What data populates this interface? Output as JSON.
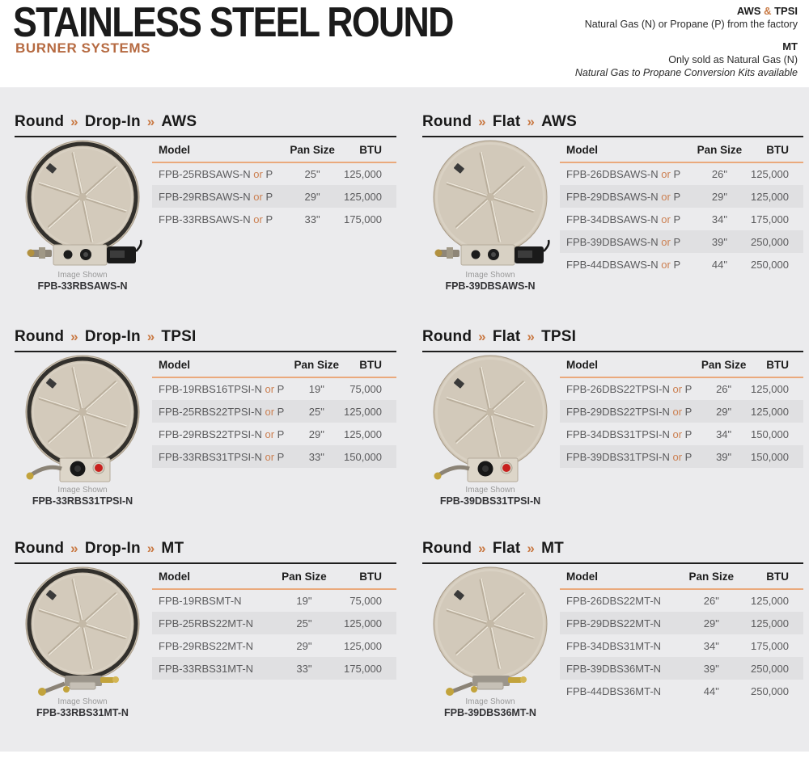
{
  "header": {
    "title": "STAINLESS STEEL ROUND",
    "subtitle": "BURNER SYSTEMS",
    "notes": [
      {
        "heading": "AWS & TPSI",
        "lines": [
          {
            "text": "Natural Gas (N) or Propane (P) from the factory",
            "italic": false
          }
        ]
      },
      {
        "heading": "MT",
        "lines": [
          {
            "text": "Only sold as Natural Gas (N)",
            "italic": false
          },
          {
            "text": "Natural Gas to Propane Conversion Kits available",
            "italic": true
          }
        ]
      }
    ]
  },
  "accent_colors": {
    "orange": "#c97a45",
    "orange_light": "#eaa97c",
    "row_shade": "#e0e0e2",
    "page_bg": "#ebebed"
  },
  "table_headers": [
    "Model",
    "Pan Size",
    "BTU"
  ],
  "or_label": "or",
  "image_caption_label": "Image Shown",
  "sections": [
    {
      "breadcrumb": [
        "Round",
        "Drop-In",
        "AWS"
      ],
      "image_style": "drop-in",
      "image_family": "aws",
      "image_model": "FPB-33RBSAWS-N",
      "rows": [
        {
          "model": "FPB-25RBSAWS-N",
          "alt": "P",
          "pan": "25\"",
          "btu": "125,000"
        },
        {
          "model": "FPB-29RBSAWS-N",
          "alt": "P",
          "pan": "29\"",
          "btu": "125,000"
        },
        {
          "model": "FPB-33RBSAWS-N",
          "alt": "P",
          "pan": "33\"",
          "btu": "175,000"
        }
      ]
    },
    {
      "breadcrumb": [
        "Round",
        "Flat",
        "AWS"
      ],
      "image_style": "flat",
      "image_family": "aws",
      "image_model": "FPB-39DBSAWS-N",
      "rows": [
        {
          "model": "FPB-26DBSAWS-N",
          "alt": "P",
          "pan": "26\"",
          "btu": "125,000"
        },
        {
          "model": "FPB-29DBSAWS-N",
          "alt": "P",
          "pan": "29\"",
          "btu": "125,000"
        },
        {
          "model": "FPB-34DBSAWS-N",
          "alt": "P",
          "pan": "34\"",
          "btu": "175,000"
        },
        {
          "model": "FPB-39DBSAWS-N",
          "alt": "P",
          "pan": "39\"",
          "btu": "250,000"
        },
        {
          "model": "FPB-44DBSAWS-N",
          "alt": "P",
          "pan": "44\"",
          "btu": "250,000"
        }
      ]
    },
    {
      "breadcrumb": [
        "Round",
        "Drop-In",
        "TPSI"
      ],
      "image_style": "drop-in",
      "image_family": "tpsi",
      "image_model": "FPB-33RBS31TPSI-N",
      "rows": [
        {
          "model": "FPB-19RBS16TPSI-N",
          "alt": "P",
          "pan": "19\"",
          "btu": "75,000"
        },
        {
          "model": "FPB-25RBS22TPSI-N",
          "alt": "P",
          "pan": "25\"",
          "btu": "125,000"
        },
        {
          "model": "FPB-29RBS22TPSI-N",
          "alt": "P",
          "pan": "29\"",
          "btu": "125,000"
        },
        {
          "model": "FPB-33RBS31TPSI-N",
          "alt": "P",
          "pan": "33\"",
          "btu": "150,000"
        }
      ]
    },
    {
      "breadcrumb": [
        "Round",
        "Flat",
        "TPSI"
      ],
      "image_style": "flat",
      "image_family": "tpsi",
      "image_model": "FPB-39DBS31TPSI-N",
      "rows": [
        {
          "model": "FPB-26DBS22TPSI-N",
          "alt": "P",
          "pan": "26\"",
          "btu": "125,000"
        },
        {
          "model": "FPB-29DBS22TPSI-N",
          "alt": "P",
          "pan": "29\"",
          "btu": "125,000"
        },
        {
          "model": "FPB-34DBS31TPSI-N",
          "alt": "P",
          "pan": "34\"",
          "btu": "150,000"
        },
        {
          "model": "FPB-39DBS31TPSI-N",
          "alt": "P",
          "pan": "39\"",
          "btu": "150,000"
        }
      ]
    },
    {
      "breadcrumb": [
        "Round",
        "Drop-In",
        "MT"
      ],
      "image_style": "drop-in",
      "image_family": "mt",
      "image_model": "FPB-33RBS31MT-N",
      "rows": [
        {
          "model": "FPB-19RBSMT-N",
          "alt": null,
          "pan": "19\"",
          "btu": "75,000"
        },
        {
          "model": "FPB-25RBS22MT-N",
          "alt": null,
          "pan": "25\"",
          "btu": "125,000"
        },
        {
          "model": "FPB-29RBS22MT-N",
          "alt": null,
          "pan": "29\"",
          "btu": "125,000"
        },
        {
          "model": "FPB-33RBS31MT-N",
          "alt": null,
          "pan": "33\"",
          "btu": "175,000"
        }
      ]
    },
    {
      "breadcrumb": [
        "Round",
        "Flat",
        "MT"
      ],
      "image_style": "flat",
      "image_family": "mt",
      "image_model": "FPB-39DBS36MT-N",
      "rows": [
        {
          "model": "FPB-26DBS22MT-N",
          "alt": null,
          "pan": "26\"",
          "btu": "125,000"
        },
        {
          "model": "FPB-29DBS22MT-N",
          "alt": null,
          "pan": "29\"",
          "btu": "125,000"
        },
        {
          "model": "FPB-34DBS31MT-N",
          "alt": null,
          "pan": "34\"",
          "btu": "175,000"
        },
        {
          "model": "FPB-39DBS36MT-N",
          "alt": null,
          "pan": "39\"",
          "btu": "250,000"
        },
        {
          "model": "FPB-44DBS36MT-N",
          "alt": null,
          "pan": "44\"",
          "btu": "250,000"
        }
      ]
    }
  ]
}
